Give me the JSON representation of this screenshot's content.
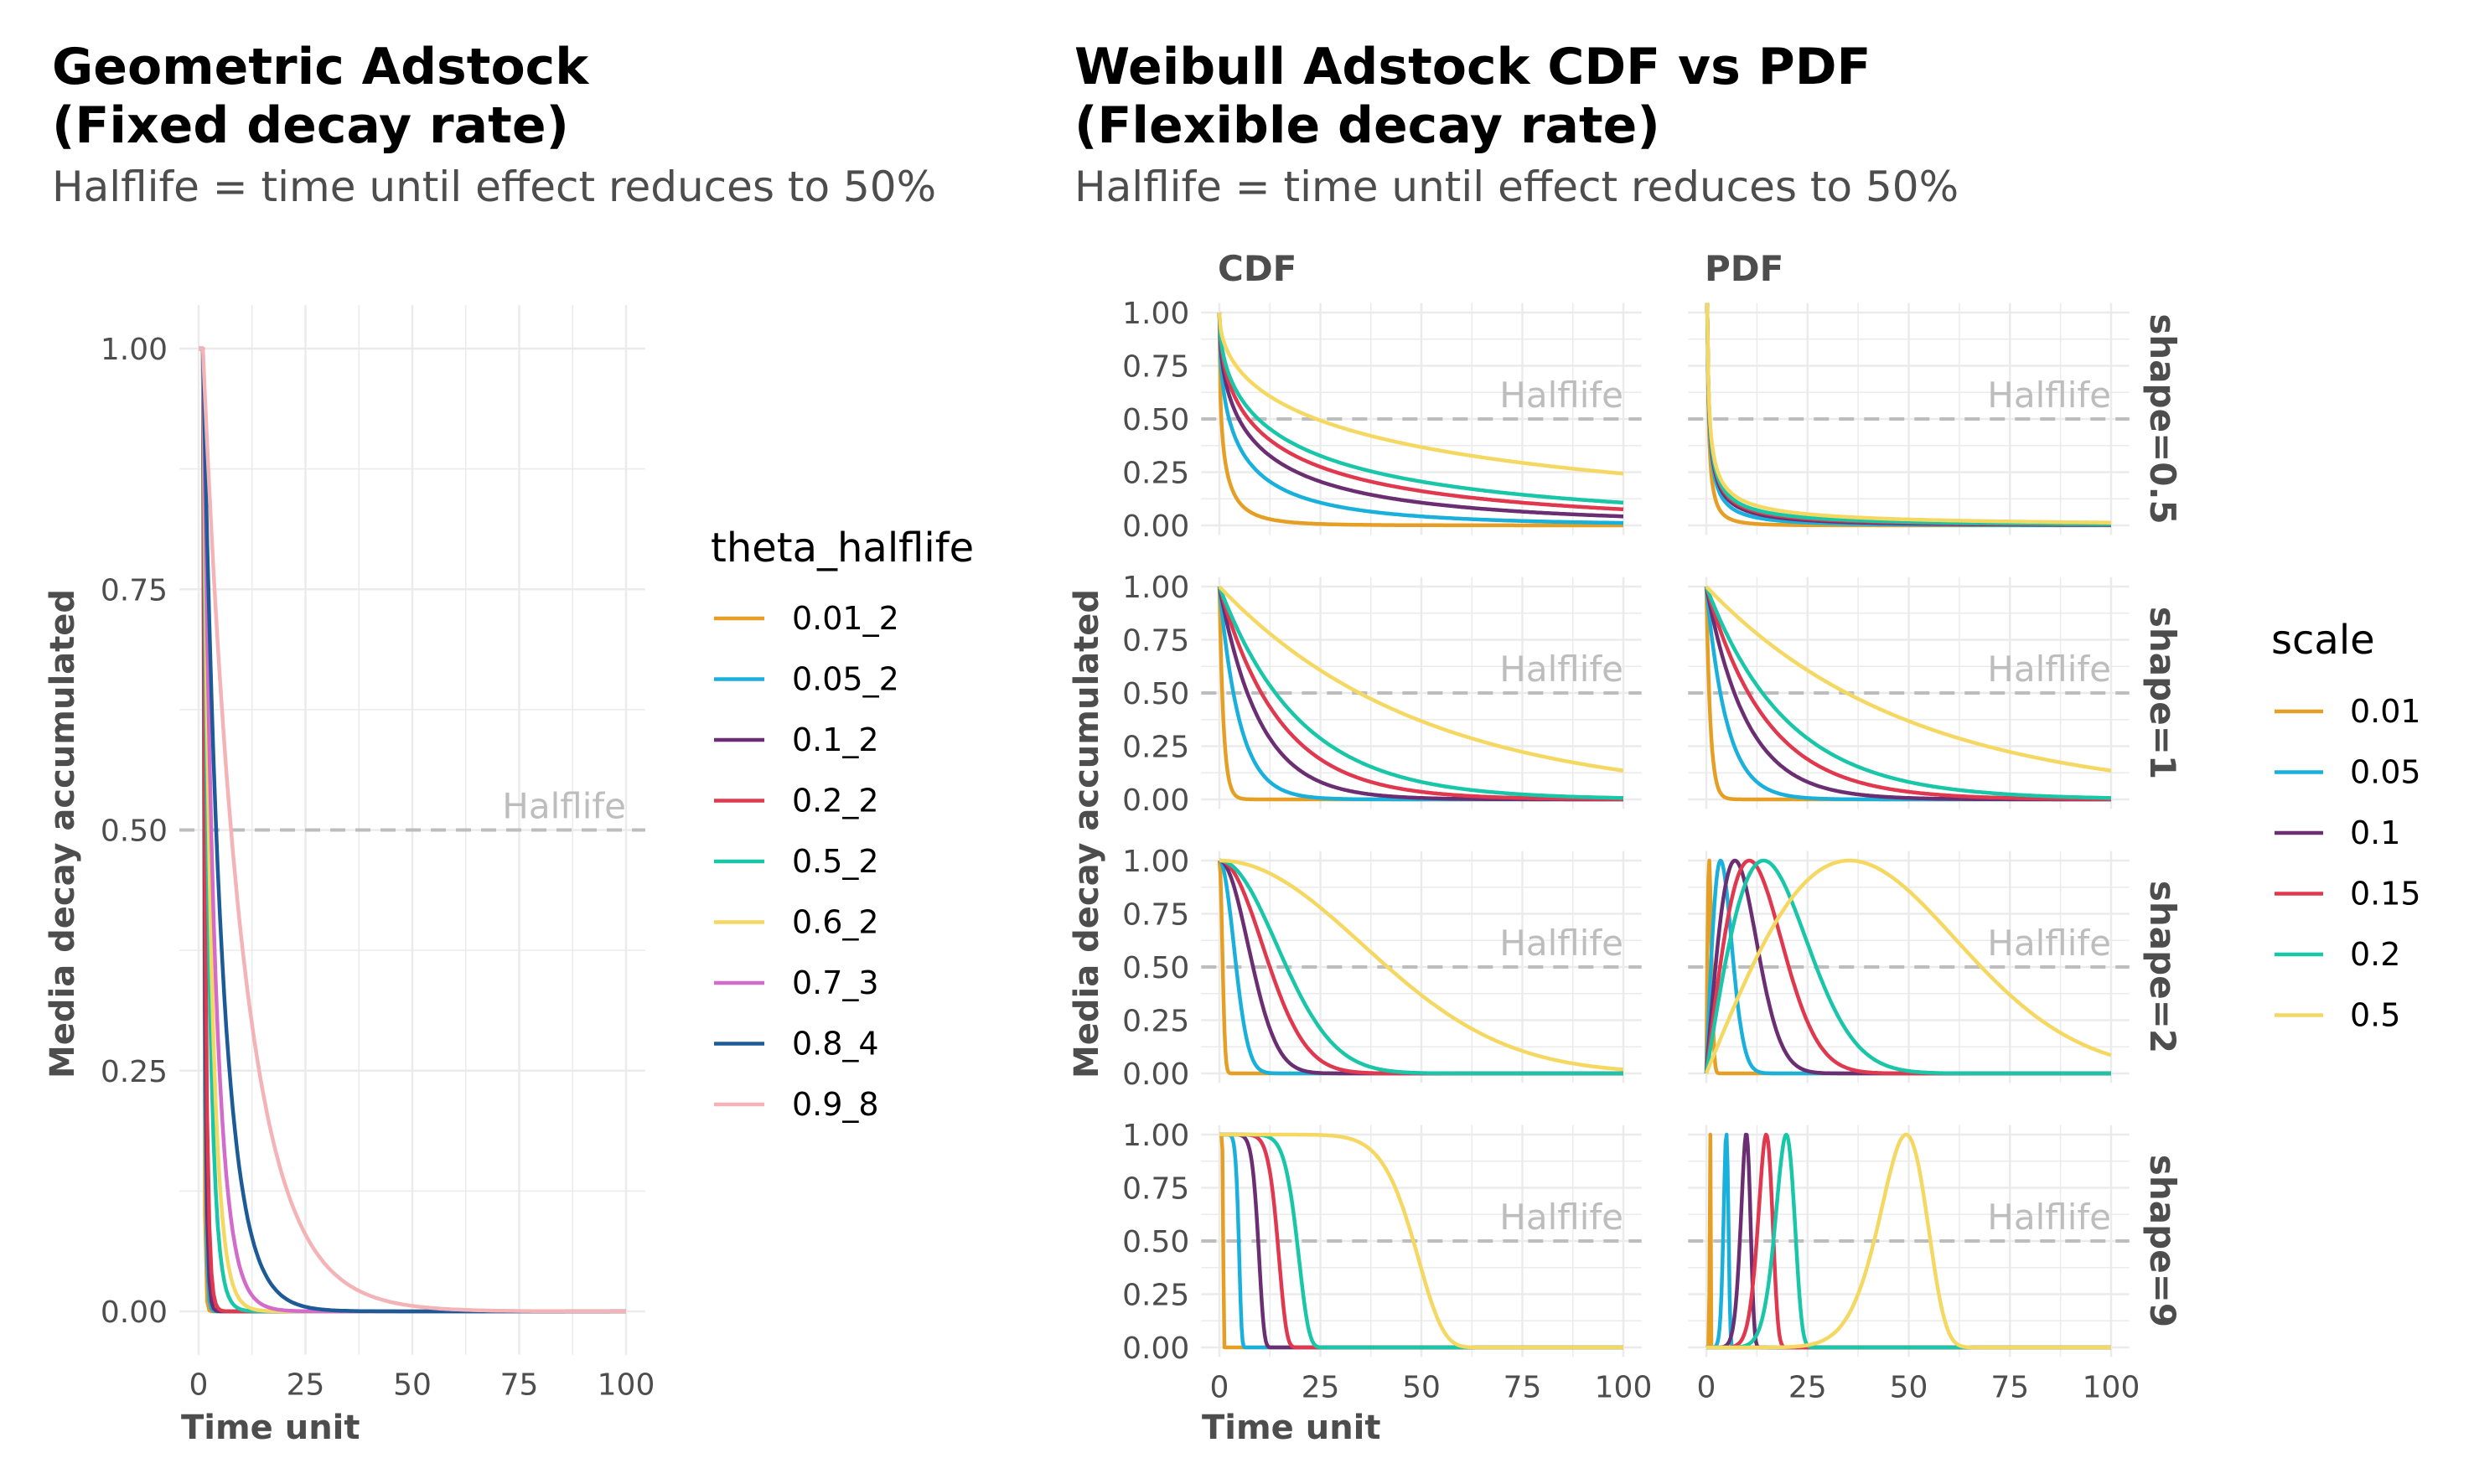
{
  "left": {
    "title_line1": "Geometric Adstock",
    "title_line2": "(Fixed decay rate)",
    "subtitle": "Halflife = time until effect reduces to 50%",
    "ylabel": "Media decay accumulated",
    "xlabel": "Time unit",
    "halflife_label": "Halflife",
    "legend_title": "theta_halflife"
  },
  "right": {
    "title_line1": "Weibull Adstock CDF vs PDF",
    "title_line2": "(Flexible decay rate)",
    "subtitle": "Halflife = time until effect reduces to 50%",
    "ylabel": "Media decay accumulated",
    "xlabel": "Time unit",
    "halflife_label": "Halflife",
    "legend_title": "scale",
    "col_strips": [
      "CDF",
      "PDF"
    ],
    "row_strips": [
      "shape=0.5",
      "shape=1",
      "shape=2",
      "shape=9"
    ]
  },
  "colors": {
    "geometric": [
      "#E69F25",
      "#1AB0DC",
      "#6B2E72",
      "#E0384E",
      "#19C6A8",
      "#F5D862",
      "#D36BCB",
      "#1D5A98",
      "#F4B3B7"
    ],
    "weibull": [
      "#E69F25",
      "#1AB0DC",
      "#6B2E72",
      "#E0384E",
      "#19C6A8",
      "#F5D862"
    ],
    "grid": "#ebebeb",
    "halflife": "#bdbdbd"
  },
  "chart_data": [
    {
      "type": "line",
      "title": "Geometric Adstock\n(Fixed decay rate)",
      "subtitle": "Halflife = time until effect reduces to 50%",
      "xlabel": "Time unit",
      "ylabel": "Media decay accumulated",
      "xlim": [
        0,
        100
      ],
      "ylim": [
        0,
        1
      ],
      "x_ticks": [
        "0",
        "25",
        "50",
        "75",
        "100"
      ],
      "y_ticks": [
        "0.00",
        "0.25",
        "0.50",
        "0.75",
        "1.00"
      ],
      "hline": {
        "y": 0.5,
        "label": "Halflife",
        "style": "dashed"
      },
      "legend": {
        "title": "theta_halflife",
        "position": "right"
      },
      "grid": true,
      "series": [
        {
          "name": "0.01_2",
          "theta": 0.01
        },
        {
          "name": "0.05_2",
          "theta": 0.05
        },
        {
          "name": "0.1_2",
          "theta": 0.1
        },
        {
          "name": "0.2_2",
          "theta": 0.2
        },
        {
          "name": "0.5_2",
          "theta": 0.5
        },
        {
          "name": "0.6_2",
          "theta": 0.6
        },
        {
          "name": "0.7_3",
          "theta": 0.7
        },
        {
          "name": "0.8_4",
          "theta": 0.8
        },
        {
          "name": "0.9_8",
          "theta": 0.9
        }
      ]
    },
    {
      "type": "line",
      "title": "Weibull Adstock CDF vs PDF\n(Flexible decay rate)",
      "subtitle": "Halflife = time until effect reduces to 50%",
      "xlabel": "Time unit",
      "ylabel": "Media decay accumulated",
      "xlim": [
        0,
        100
      ],
      "ylim": [
        0,
        1
      ],
      "x_ticks": [
        "0",
        "25",
        "50",
        "75",
        "100"
      ],
      "y_ticks": [
        "0.00",
        "0.25",
        "0.50",
        "0.75",
        "1.00"
      ],
      "hline": {
        "y": 0.5,
        "label": "Halflife",
        "style": "dashed"
      },
      "legend": {
        "title": "scale",
        "position": "right"
      },
      "grid": true,
      "facet_cols": [
        "CDF",
        "PDF"
      ],
      "facet_rows": [
        {
          "label": "shape=0.5",
          "shape": 0.5
        },
        {
          "label": "shape=1",
          "shape": 1
        },
        {
          "label": "shape=2",
          "shape": 2
        },
        {
          "label": "shape=9",
          "shape": 9
        }
      ],
      "series": [
        {
          "name": "0.01",
          "scale": 0.01
        },
        {
          "name": "0.05",
          "scale": 0.05
        },
        {
          "name": "0.1",
          "scale": 0.1
        },
        {
          "name": "0.15",
          "scale": 0.15
        },
        {
          "name": "0.2",
          "scale": 0.2
        },
        {
          "name": "0.5",
          "scale": 0.5
        }
      ]
    }
  ]
}
